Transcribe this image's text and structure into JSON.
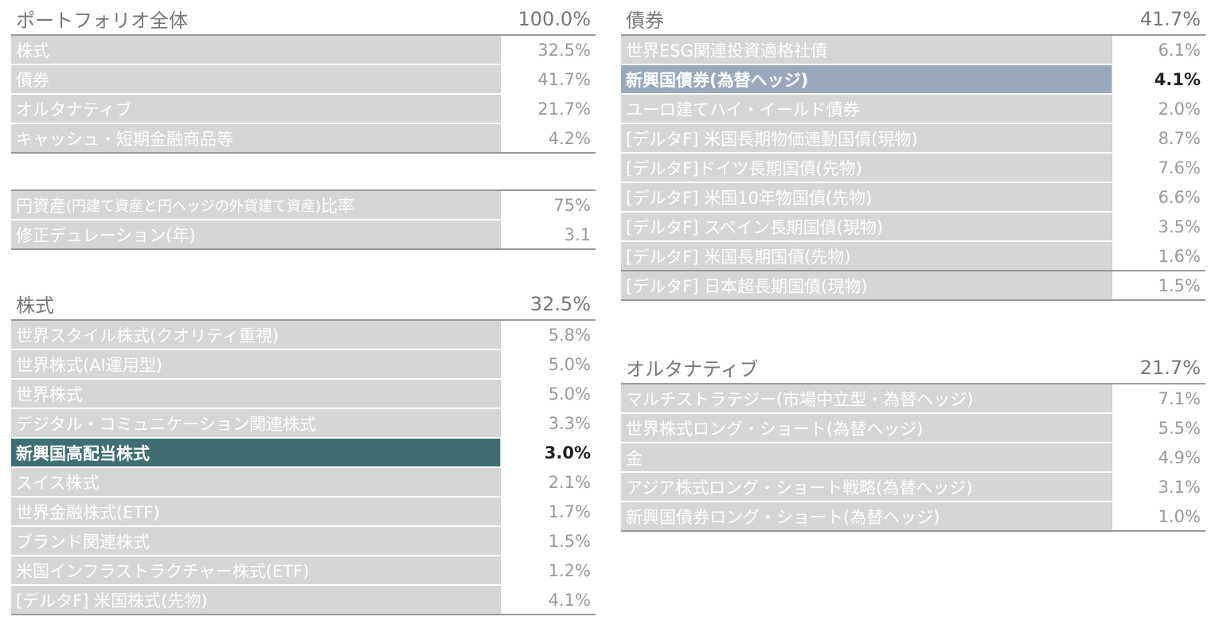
{
  "portfolio": {
    "title": "ポートフォリオ全体",
    "total": "100.0%",
    "rows": [
      {
        "label": "株式",
        "value": "32.5%"
      },
      {
        "label": "債券",
        "value": "41.7%"
      },
      {
        "label": "オルタナティブ",
        "value": "21.7%"
      },
      {
        "label": "キャッシュ・短期金融商品等",
        "value": "4.2%"
      }
    ]
  },
  "metrics": {
    "rows": [
      {
        "label_pre": "円資産",
        "label_small": "(円建て資産と円ヘッジの外貨建て資産)",
        "label_post": "比率",
        "value": "75%"
      },
      {
        "label": "修正デュレーション(年)",
        "value": "3.1"
      }
    ]
  },
  "equity": {
    "title": "株式",
    "total": "32.5%",
    "rows": [
      {
        "label": "世界スタイル株式(クオリティ重視)",
        "value": "5.8%"
      },
      {
        "label": "世界株式(AI運用型)",
        "value": "5.0%"
      },
      {
        "label": "世界株式",
        "value": "5.0%"
      },
      {
        "label": "デジタル・コミュニケーション関連株式",
        "value": "3.3%"
      },
      {
        "label": "新興国高配当株式",
        "value": "3.0%",
        "highlight": true
      },
      {
        "label": "スイス株式",
        "value": "2.1%"
      },
      {
        "label": "世界金融株式(ETF)",
        "value": "1.7%"
      },
      {
        "label": "ブランド関連株式",
        "value": "1.5%"
      },
      {
        "label": "米国インフラストラクチャー株式(ETF)",
        "value": "1.2%"
      },
      {
        "label": "[デルタF] 米国株式(先物)",
        "value": "4.1%"
      }
    ]
  },
  "bonds": {
    "title": "債券",
    "total": "41.7%",
    "rows": [
      {
        "label": "世界ESG関連投資適格社債",
        "value": "6.1%"
      },
      {
        "label": "新興国債券(為替ヘッジ)",
        "value": "4.1%",
        "highlight": true
      },
      {
        "label": "ユーロ建てハイ・イールド債券",
        "value": "2.0%"
      },
      {
        "label": "[デルタF] 米国長期物価連動国債(現物)",
        "value": "8.7%"
      },
      {
        "label": "[デルタF]ドイツ長期国債(先物)",
        "value": "7.6%"
      },
      {
        "label": "[デルタF] 米国10年物国債(先物)",
        "value": "6.6%"
      },
      {
        "label": "[デルタF] スペイン長期国債(現物)",
        "value": "3.5%"
      },
      {
        "label": "[デルタF] 米国長期国債(先物)",
        "value": "1.6%"
      },
      {
        "label": "[デルタF] 日本超長期国債(現物)",
        "value": "1.5%"
      }
    ]
  },
  "alternatives": {
    "title": "オルタナティブ",
    "total": "21.7%",
    "rows": [
      {
        "label": "マルチストラテジー(市場中立型・為替ヘッジ)",
        "value": "7.1%"
      },
      {
        "label": "世界株式ロング・ショート(為替ヘッジ)",
        "value": "5.5%"
      },
      {
        "label": "金",
        "value": "4.9%"
      },
      {
        "label": "アジア株式ロング・ショート戦略(為替ヘッジ)",
        "value": "3.1%"
      },
      {
        "label": "新興国債券ロング・ショート(為替ヘッジ)",
        "value": "1.0%"
      }
    ]
  },
  "colors": {
    "label_bg": "#d6d6d6",
    "highlight_teal": "#3f6f72",
    "highlight_blue": "#9aa8bd",
    "header_text": "#777777"
  }
}
